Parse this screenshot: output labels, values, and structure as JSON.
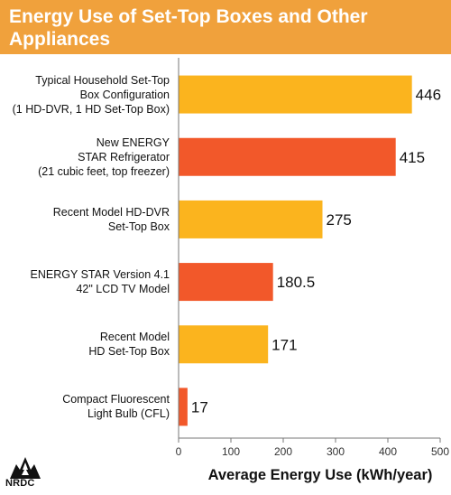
{
  "title": "Energy Use of Set-Top Boxes and Other\nAppliances",
  "logo_text": "NRDC",
  "colors": {
    "banner": "#f0a13c",
    "yellow": "#fbb41e",
    "red": "#f2582a",
    "axis": "#777777"
  },
  "chart_data": {
    "type": "bar",
    "orientation": "horizontal",
    "categories": [
      "Typical Household Set-Top\nBox Configuration\n(1 HD-DVR, 1 HD Set-Top Box)",
      "New ENERGY\nSTAR Refrigerator\n(21 cubic feet, top freezer)",
      "Recent Model HD-DVR\nSet-Top Box",
      "ENERGY STAR Version 4.1\n42\" LCD TV Model",
      "Recent Model\nHD Set-Top Box",
      "Compact Fluorescent\nLight Bulb (CFL)"
    ],
    "values": [
      446,
      415,
      275,
      180.5,
      171,
      17
    ],
    "value_labels": [
      "446",
      "415",
      "275",
      "180.5",
      "171",
      "17"
    ],
    "bar_colors": [
      "yellow",
      "red",
      "yellow",
      "red",
      "yellow",
      "red"
    ],
    "xlabel": "Average Energy Use (kWh/year)",
    "xlim": [
      0,
      500
    ],
    "xticks": [
      0,
      100,
      200,
      300,
      400,
      500
    ],
    "grid": false
  }
}
